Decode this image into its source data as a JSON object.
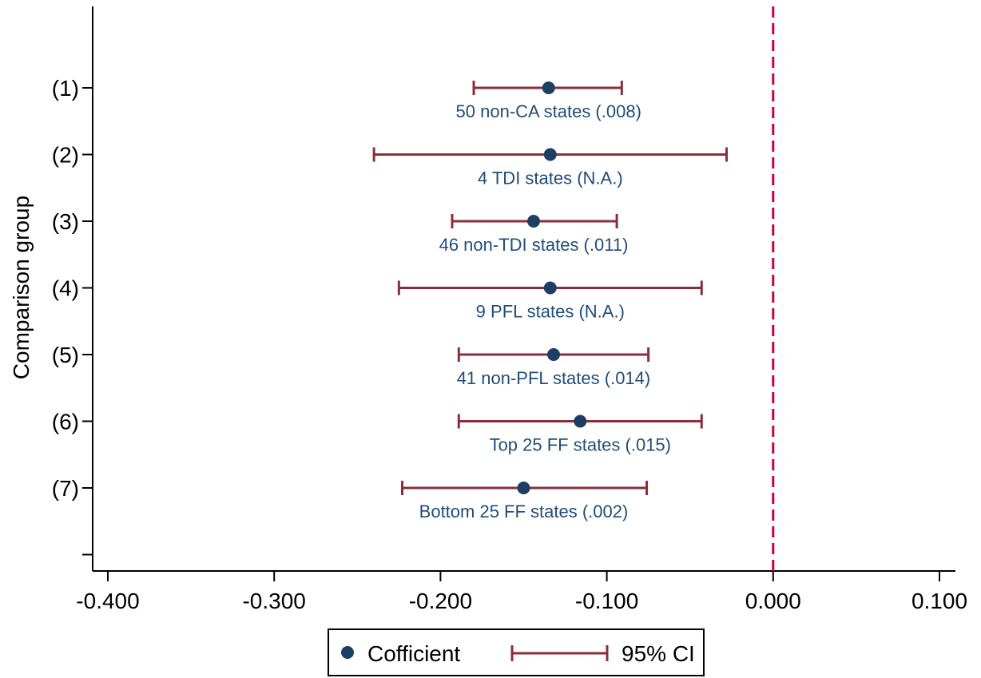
{
  "chart_data": {
    "type": "scatter",
    "orientation": "horizontal",
    "ylabel": "Comparison group",
    "xlabel": "",
    "xlim": [
      -0.4,
      0.1
    ],
    "x_ticks": [
      -0.4,
      -0.3,
      -0.2,
      -0.1,
      0.0,
      0.1
    ],
    "x_tick_labels": [
      "-0.400",
      "-0.300",
      "-0.200",
      "-0.100",
      "0.000",
      "0.100"
    ],
    "y_categories": [
      "(1)",
      "(2)",
      "(3)",
      "(4)",
      "(5)",
      "(6)",
      "(7)"
    ],
    "reference_line": {
      "x": 0.0,
      "style": "dashed",
      "color": "#c8003c"
    },
    "points": [
      {
        "group": "(1)",
        "label": "50 non-CA states (.008)",
        "coef": -0.135,
        "ci_low": -0.18,
        "ci_high": -0.091
      },
      {
        "group": "(2)",
        "label": "4 TDI states (N.A.)",
        "coef": -0.134,
        "ci_low": -0.24,
        "ci_high": -0.028
      },
      {
        "group": "(3)",
        "label": "46 non-TDI states (.011)",
        "coef": -0.144,
        "ci_low": -0.193,
        "ci_high": -0.094
      },
      {
        "group": "(4)",
        "label": "9 PFL states (N.A.)",
        "coef": -0.134,
        "ci_low": -0.225,
        "ci_high": -0.043
      },
      {
        "group": "(5)",
        "label": "41 non-PFL states (.014)",
        "coef": -0.132,
        "ci_low": -0.189,
        "ci_high": -0.075
      },
      {
        "group": "(6)",
        "label": "Top 25 FF states (.015)",
        "coef": -0.116,
        "ci_low": -0.189,
        "ci_high": -0.043
      },
      {
        "group": "(7)",
        "label": "Bottom 25 FF states (.002)",
        "coef": -0.15,
        "ci_low": -0.223,
        "ci_high": -0.076
      }
    ],
    "legend": {
      "position": "bottom-center",
      "entries": [
        "Cofficient",
        "95% CI"
      ]
    },
    "colors": {
      "marker": "#1c3f63",
      "ci": "#8b2e3c",
      "label": "#1f4e79",
      "refline": "#c8003c"
    },
    "grid": false
  }
}
